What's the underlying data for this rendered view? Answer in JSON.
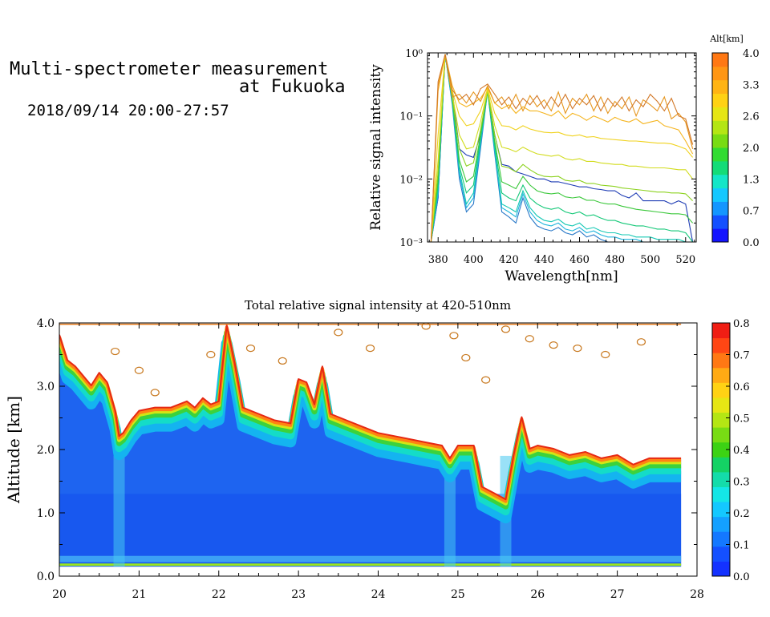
{
  "header": {
    "title_line1": "Multi-spectrometer measurement",
    "title_line2": "at Fukuoka",
    "datetime": "2018/09/14 20:00-27:57"
  },
  "chart_data": [
    {
      "type": "line",
      "title": "",
      "xlabel": "Wavelength[nm]",
      "ylabel": "Relative signal intensity",
      "y_scale": "log",
      "xlim": [
        374,
        526
      ],
      "ylim": [
        0.001,
        1
      ],
      "x_ticks": [
        "380",
        "400",
        "420",
        "440",
        "460",
        "480",
        "500",
        "520"
      ],
      "y_ticks": [
        "10⁻³",
        "10⁻²",
        "10⁻¹",
        "10⁰"
      ],
      "x": [
        376,
        380,
        384,
        388,
        392,
        396,
        400,
        404,
        408,
        412,
        416,
        420,
        424,
        428,
        432,
        436,
        440,
        444,
        448,
        452,
        456,
        460,
        464,
        468,
        472,
        476,
        480,
        484,
        488,
        492,
        496,
        500,
        504,
        508,
        512,
        516,
        520,
        524
      ],
      "colorbar": {
        "label": "Alt[km]",
        "ticks": [
          "4.0",
          "3.3",
          "2.6",
          "2.0",
          "1.3",
          "0.7",
          "0.0"
        ],
        "colors": [
          "#1414ff",
          "#1450ff",
          "#1496ff",
          "#14c8ff",
          "#14e6c8",
          "#14dc78",
          "#32dc32",
          "#78dc14",
          "#b4e614",
          "#e6e614",
          "#ffd214",
          "#ffb414",
          "#ff9614",
          "#ff7814"
        ]
      },
      "series": [
        {
          "color": "#1e3cb4",
          "values": [
            0.001,
            0.005,
            0.95,
            0.25,
            0.03,
            0.024,
            0.022,
            0.05,
            0.26,
            0.05,
            0.017,
            0.016,
            0.013,
            0.012,
            0.011,
            0.01,
            0.01,
            0.009,
            0.009,
            0.0085,
            0.008,
            0.0075,
            0.0075,
            0.007,
            0.0068,
            0.0065,
            0.0065,
            0.0055,
            0.005,
            0.006,
            0.0045,
            0.0045,
            0.0045,
            0.0045,
            0.004,
            0.0045,
            0.004,
            0.001
          ]
        },
        {
          "color": "#2878c8",
          "values": [
            0.001,
            0.005,
            0.95,
            0.15,
            0.01,
            0.003,
            0.004,
            0.03,
            0.25,
            0.025,
            0.003,
            0.0025,
            0.002,
            0.005,
            0.0025,
            0.0018,
            0.0016,
            0.0015,
            0.0017,
            0.0014,
            0.0013,
            0.0015,
            0.0012,
            0.0013,
            0.0011,
            0.001,
            0.001,
            0.001,
            0.001,
            0.001,
            0.001,
            0.001,
            0.001,
            0.001,
            0.001,
            0.001,
            0.001,
            0.001
          ]
        },
        {
          "color": "#1eb4dc",
          "values": [
            0.001,
            0.006,
            0.95,
            0.16,
            0.012,
            0.0035,
            0.005,
            0.035,
            0.25,
            0.028,
            0.0035,
            0.003,
            0.0025,
            0.0058,
            0.003,
            0.0022,
            0.0019,
            0.0018,
            0.002,
            0.0016,
            0.0015,
            0.0017,
            0.0014,
            0.0015,
            0.0013,
            0.0012,
            0.0012,
            0.0011,
            0.0011,
            0.0011,
            0.001,
            0.001,
            0.001,
            0.001,
            0.001,
            0.001,
            0.001,
            0.001
          ]
        },
        {
          "color": "#14c8b4",
          "values": [
            0.001,
            0.007,
            0.95,
            0.17,
            0.014,
            0.004,
            0.006,
            0.04,
            0.25,
            0.03,
            0.004,
            0.0035,
            0.003,
            0.0065,
            0.0035,
            0.0026,
            0.0022,
            0.0021,
            0.0023,
            0.0019,
            0.0018,
            0.002,
            0.0016,
            0.0017,
            0.0015,
            0.0014,
            0.0014,
            0.0013,
            0.0013,
            0.0012,
            0.0012,
            0.0012,
            0.0011,
            0.0011,
            0.0011,
            0.0011,
            0.001,
            0.001
          ]
        },
        {
          "color": "#14c878",
          "values": [
            0.001,
            0.008,
            0.95,
            0.18,
            0.016,
            0.006,
            0.008,
            0.045,
            0.25,
            0.035,
            0.006,
            0.005,
            0.0045,
            0.008,
            0.005,
            0.004,
            0.0035,
            0.0033,
            0.0035,
            0.003,
            0.0028,
            0.003,
            0.0026,
            0.0027,
            0.0024,
            0.0022,
            0.0022,
            0.002,
            0.0019,
            0.0018,
            0.0018,
            0.0017,
            0.0016,
            0.0016,
            0.0015,
            0.0015,
            0.0014,
            0.001
          ]
        },
        {
          "color": "#3cc83c",
          "values": [
            0.001,
            0.01,
            0.95,
            0.19,
            0.02,
            0.009,
            0.011,
            0.05,
            0.25,
            0.04,
            0.009,
            0.008,
            0.007,
            0.011,
            0.008,
            0.0065,
            0.006,
            0.0058,
            0.006,
            0.0052,
            0.005,
            0.0052,
            0.0046,
            0.0046,
            0.0042,
            0.004,
            0.004,
            0.0037,
            0.0035,
            0.0033,
            0.0032,
            0.0031,
            0.003,
            0.0029,
            0.0028,
            0.0028,
            0.0027,
            0.002
          ]
        },
        {
          "color": "#8cd21e",
          "values": [
            0.001,
            0.013,
            0.95,
            0.2,
            0.03,
            0.016,
            0.018,
            0.06,
            0.25,
            0.05,
            0.016,
            0.015,
            0.013,
            0.017,
            0.014,
            0.012,
            0.011,
            0.0108,
            0.011,
            0.0095,
            0.0092,
            0.0095,
            0.0085,
            0.0085,
            0.008,
            0.0078,
            0.0076,
            0.0072,
            0.007,
            0.0068,
            0.0066,
            0.0064,
            0.0062,
            0.0062,
            0.006,
            0.006,
            0.0058,
            0.0045
          ]
        },
        {
          "color": "#d2dc1e",
          "values": [
            0.001,
            0.02,
            0.95,
            0.22,
            0.05,
            0.03,
            0.032,
            0.08,
            0.26,
            0.07,
            0.032,
            0.03,
            0.027,
            0.032,
            0.028,
            0.025,
            0.024,
            0.023,
            0.024,
            0.021,
            0.02,
            0.021,
            0.019,
            0.019,
            0.018,
            0.0175,
            0.017,
            0.017,
            0.016,
            0.016,
            0.0155,
            0.015,
            0.015,
            0.015,
            0.0145,
            0.014,
            0.014,
            0.01
          ]
        },
        {
          "color": "#f0d21e",
          "values": [
            0.001,
            0.05,
            0.95,
            0.25,
            0.1,
            0.07,
            0.075,
            0.12,
            0.27,
            0.11,
            0.07,
            0.068,
            0.06,
            0.07,
            0.062,
            0.058,
            0.055,
            0.054,
            0.055,
            0.05,
            0.048,
            0.05,
            0.046,
            0.047,
            0.044,
            0.043,
            0.042,
            0.041,
            0.04,
            0.04,
            0.039,
            0.038,
            0.037,
            0.037,
            0.036,
            0.033,
            0.03,
            0.022
          ]
        },
        {
          "color": "#f5b41e",
          "values": [
            0.001,
            0.25,
            0.95,
            0.3,
            0.16,
            0.14,
            0.16,
            0.19,
            0.28,
            0.16,
            0.13,
            0.15,
            0.11,
            0.14,
            0.12,
            0.12,
            0.11,
            0.1,
            0.12,
            0.09,
            0.11,
            0.1,
            0.085,
            0.1,
            0.09,
            0.08,
            0.095,
            0.085,
            0.08,
            0.09,
            0.075,
            0.08,
            0.085,
            0.07,
            0.065,
            0.06,
            0.04,
            0.025
          ]
        },
        {
          "color": "#e6961e",
          "values": [
            0.001,
            0.3,
            0.95,
            0.2,
            0.22,
            0.16,
            0.24,
            0.17,
            0.3,
            0.16,
            0.2,
            0.13,
            0.22,
            0.12,
            0.21,
            0.14,
            0.18,
            0.12,
            0.24,
            0.11,
            0.19,
            0.15,
            0.22,
            0.12,
            0.2,
            0.11,
            0.17,
            0.13,
            0.2,
            0.1,
            0.18,
            0.15,
            0.12,
            0.2,
            0.09,
            0.11,
            0.08,
            0.03
          ]
        },
        {
          "color": "#d27828",
          "values": [
            0.001,
            0.35,
            0.95,
            0.26,
            0.18,
            0.22,
            0.15,
            0.27,
            0.32,
            0.22,
            0.15,
            0.2,
            0.13,
            0.19,
            0.15,
            0.21,
            0.13,
            0.2,
            0.14,
            0.22,
            0.13,
            0.19,
            0.15,
            0.21,
            0.12,
            0.19,
            0.14,
            0.2,
            0.12,
            0.18,
            0.14,
            0.22,
            0.17,
            0.12,
            0.19,
            0.1,
            0.09,
            0.035
          ]
        }
      ]
    },
    {
      "type": "heatmap",
      "title": "Total relative signal intensity at 420-510nm",
      "xlabel": "",
      "ylabel": "Altitude [km]",
      "xlim": [
        20,
        28
      ],
      "ylim": [
        0,
        4
      ],
      "x_ticks": [
        "20",
        "21",
        "22",
        "23",
        "24",
        "25",
        "26",
        "27",
        "28"
      ],
      "y_ticks": [
        "0.0",
        "1.0",
        "2.0",
        "3.0",
        "4.0"
      ],
      "colorbar": {
        "ticks": [
          "0.0",
          "0.1",
          "0.2",
          "0.3",
          "0.4",
          "0.5",
          "0.6",
          "0.7",
          "0.8"
        ],
        "range": [
          0,
          0.8
        ],
        "colors": [
          "#1432ff",
          "#1450ff",
          "#1478ff",
          "#14a0ff",
          "#14c8ff",
          "#14e6e6",
          "#14dcaa",
          "#14d264",
          "#3cd214",
          "#78dc14",
          "#b4e614",
          "#e6e614",
          "#ffd214",
          "#ffaa14",
          "#ff7814",
          "#ff4614",
          "#f01e14"
        ]
      },
      "cloud_top_profile": {
        "x": [
          20.0,
          20.1,
          20.2,
          20.3,
          20.4,
          20.5,
          20.6,
          20.7,
          20.75,
          20.8,
          20.9,
          21.0,
          21.2,
          21.4,
          21.6,
          21.7,
          21.8,
          21.9,
          22.0,
          22.1,
          22.2,
          22.3,
          22.5,
          22.7,
          22.9,
          23.0,
          23.1,
          23.2,
          23.3,
          23.4,
          23.6,
          23.8,
          24.0,
          24.2,
          24.4,
          24.6,
          24.8,
          24.9,
          25.0,
          25.2,
          25.3,
          25.45,
          25.6,
          25.7,
          25.8,
          25.9,
          26.0,
          26.2,
          26.4,
          26.6,
          26.8,
          27.0,
          27.2,
          27.4,
          27.6,
          27.8
        ],
        "altitude_km": [
          3.8,
          3.4,
          3.3,
          3.15,
          3.0,
          3.2,
          3.05,
          2.6,
          2.2,
          2.25,
          2.45,
          2.6,
          2.65,
          2.65,
          2.75,
          2.65,
          2.8,
          2.7,
          2.75,
          3.95,
          3.35,
          2.65,
          2.55,
          2.45,
          2.4,
          3.1,
          3.05,
          2.7,
          3.3,
          2.55,
          2.45,
          2.35,
          2.25,
          2.2,
          2.15,
          2.1,
          2.05,
          1.85,
          2.05,
          2.05,
          1.4,
          1.3,
          1.2,
          1.9,
          2.5,
          2.0,
          2.05,
          2.0,
          1.9,
          1.95,
          1.85,
          1.9,
          1.75,
          1.85,
          1.85,
          1.85
        ]
      },
      "dip_times": [
        20.75,
        24.9,
        25.6
      ]
    }
  ]
}
